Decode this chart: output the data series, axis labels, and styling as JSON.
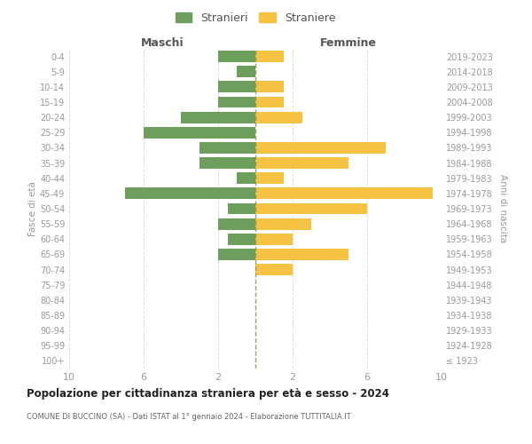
{
  "age_groups": [
    "100+",
    "95-99",
    "90-94",
    "85-89",
    "80-84",
    "75-79",
    "70-74",
    "65-69",
    "60-64",
    "55-59",
    "50-54",
    "45-49",
    "40-44",
    "35-39",
    "30-34",
    "25-29",
    "20-24",
    "15-19",
    "10-14",
    "5-9",
    "0-4"
  ],
  "birth_years": [
    "≤ 1923",
    "1924-1928",
    "1929-1933",
    "1934-1938",
    "1939-1943",
    "1944-1948",
    "1949-1953",
    "1954-1958",
    "1959-1963",
    "1964-1968",
    "1969-1973",
    "1974-1978",
    "1979-1983",
    "1984-1988",
    "1989-1993",
    "1994-1998",
    "1999-2003",
    "2004-2008",
    "2009-2013",
    "2014-2018",
    "2019-2023"
  ],
  "males": [
    0,
    0,
    0,
    0,
    0,
    0,
    0,
    2,
    1.5,
    2,
    1.5,
    7,
    1,
    3,
    3,
    6,
    4,
    2,
    2,
    1,
    2
  ],
  "females": [
    0,
    0,
    0,
    0,
    0,
    0,
    2,
    5,
    2,
    3,
    6,
    9.5,
    1.5,
    5,
    7,
    0,
    2.5,
    1.5,
    1.5,
    0,
    1.5
  ],
  "male_color": "#6d9e5c",
  "female_color": "#f5c242",
  "bar_height": 0.75,
  "xlim": 10,
  "title": "Popolazione per cittadinanza straniera per età e sesso - 2024",
  "subtitle": "COMUNE DI BUCCINO (SA) - Dati ISTAT al 1° gennaio 2024 - Elaborazione TUTTITALIA.IT",
  "ylabel_left": "Fasce di età",
  "ylabel_right": "Anni di nascita",
  "legend_stranieri": "Stranieri",
  "legend_straniere": "Straniere",
  "maschi_label": "Maschi",
  "femmine_label": "Femmine",
  "bg_color": "#ffffff",
  "grid_color": "#dddddd",
  "label_color": "#999999",
  "title_color": "#222222",
  "subtitle_color": "#666666"
}
